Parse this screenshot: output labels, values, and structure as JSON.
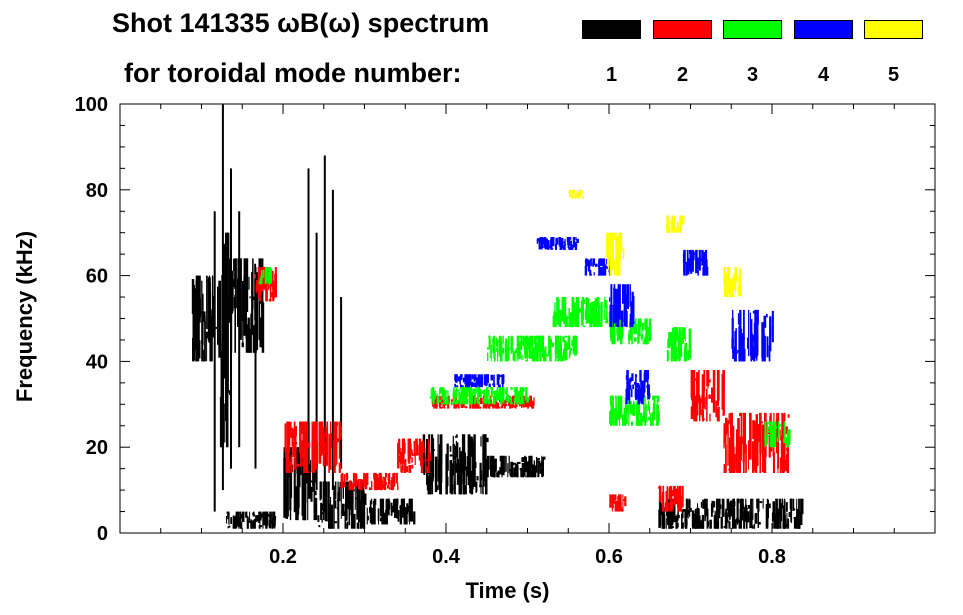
{
  "chart_data": {
    "type": "heatmap",
    "title_line1": "Shot 141335 ωB(ω) spectrum",
    "title_line2": "for toroidal mode number:",
    "legend": [
      {
        "label": "1",
        "color": "#000000"
      },
      {
        "label": "2",
        "color": "#ff0000"
      },
      {
        "label": "3",
        "color": "#00ff00"
      },
      {
        "label": "4",
        "color": "#0000ff"
      },
      {
        "label": "5",
        "color": "#ffff00"
      }
    ],
    "xlabel": "Time (s)",
    "ylabel": "Frequency (kHz)",
    "xlim": [
      0.0,
      1.0
    ],
    "ylim": [
      0,
      100
    ],
    "xticks": [
      0.2,
      0.4,
      0.6,
      0.8
    ],
    "xtick_labels": [
      "0.2",
      "0.4",
      "0.6",
      "0.8"
    ],
    "yticks": [
      0,
      20,
      40,
      60,
      80,
      100
    ],
    "ytick_labels": [
      "0",
      "20",
      "40",
      "60",
      "80",
      "100"
    ],
    "series": [
      {
        "name": "n=1",
        "color": "#000000",
        "regions": [
          {
            "t0": 0.085,
            "t1": 0.12,
            "f0": 40,
            "f1": 60
          },
          {
            "t0": 0.12,
            "t1": 0.135,
            "f0": 20,
            "f1": 70
          },
          {
            "t0": 0.125,
            "t1": 0.175,
            "f0": 42,
            "f1": 64
          },
          {
            "t0": 0.13,
            "t1": 0.19,
            "f0": 1,
            "f1": 5
          },
          {
            "t0": 0.2,
            "t1": 0.24,
            "f0": 3,
            "f1": 20
          },
          {
            "t0": 0.24,
            "t1": 0.3,
            "f0": 1,
            "f1": 12
          },
          {
            "t0": 0.3,
            "t1": 0.36,
            "f0": 2,
            "f1": 8
          },
          {
            "t0": 0.37,
            "t1": 0.45,
            "f0": 9,
            "f1": 23
          },
          {
            "t0": 0.45,
            "t1": 0.52,
            "f0": 13,
            "f1": 18
          },
          {
            "t0": 0.66,
            "t1": 0.84,
            "f0": 1,
            "f1": 8
          }
        ],
        "spikes": [
          {
            "t": 0.115,
            "f0": 5,
            "f1": 75
          },
          {
            "t": 0.125,
            "f0": 10,
            "f1": 100
          },
          {
            "t": 0.135,
            "f0": 15,
            "f1": 85
          },
          {
            "t": 0.145,
            "f0": 20,
            "f1": 75
          },
          {
            "t": 0.165,
            "f0": 15,
            "f1": 62
          },
          {
            "t": 0.23,
            "f0": 8,
            "f1": 85
          },
          {
            "t": 0.24,
            "f0": 10,
            "f1": 70
          },
          {
            "t": 0.25,
            "f0": 8,
            "f1": 88
          },
          {
            "t": 0.26,
            "f0": 10,
            "f1": 80
          },
          {
            "t": 0.27,
            "f0": 15,
            "f1": 55
          }
        ]
      },
      {
        "name": "n=2",
        "color": "#ff0000",
        "regions": [
          {
            "t0": 0.165,
            "t1": 0.19,
            "f0": 54,
            "f1": 62
          },
          {
            "t0": 0.2,
            "t1": 0.27,
            "f0": 14,
            "f1": 26
          },
          {
            "t0": 0.27,
            "t1": 0.34,
            "f0": 10,
            "f1": 14
          },
          {
            "t0": 0.34,
            "t1": 0.38,
            "f0": 14,
            "f1": 22
          },
          {
            "t0": 0.38,
            "t1": 0.51,
            "f0": 29,
            "f1": 32
          },
          {
            "t0": 0.6,
            "t1": 0.62,
            "f0": 5,
            "f1": 9
          },
          {
            "t0": 0.66,
            "t1": 0.69,
            "f0": 5,
            "f1": 11
          },
          {
            "t0": 0.7,
            "t1": 0.74,
            "f0": 26,
            "f1": 38
          },
          {
            "t0": 0.74,
            "t1": 0.82,
            "f0": 14,
            "f1": 28
          }
        ],
        "spikes": []
      },
      {
        "name": "n=3",
        "color": "#00ff00",
        "regions": [
          {
            "t0": 0.17,
            "t1": 0.185,
            "f0": 58,
            "f1": 62
          },
          {
            "t0": 0.38,
            "t1": 0.5,
            "f0": 30,
            "f1": 34
          },
          {
            "t0": 0.45,
            "t1": 0.56,
            "f0": 40,
            "f1": 46
          },
          {
            "t0": 0.53,
            "t1": 0.6,
            "f0": 48,
            "f1": 55
          },
          {
            "t0": 0.6,
            "t1": 0.65,
            "f0": 44,
            "f1": 50
          },
          {
            "t0": 0.67,
            "t1": 0.7,
            "f0": 40,
            "f1": 48
          },
          {
            "t0": 0.6,
            "t1": 0.66,
            "f0": 25,
            "f1": 32
          },
          {
            "t0": 0.79,
            "t1": 0.82,
            "f0": 20,
            "f1": 26
          }
        ],
        "spikes": []
      },
      {
        "name": "n=4",
        "color": "#0000ff",
        "regions": [
          {
            "t0": 0.41,
            "t1": 0.47,
            "f0": 34,
            "f1": 37
          },
          {
            "t0": 0.51,
            "t1": 0.56,
            "f0": 66,
            "f1": 69
          },
          {
            "t0": 0.57,
            "t1": 0.6,
            "f0": 60,
            "f1": 64
          },
          {
            "t0": 0.6,
            "t1": 0.63,
            "f0": 48,
            "f1": 58
          },
          {
            "t0": 0.69,
            "t1": 0.72,
            "f0": 60,
            "f1": 66
          },
          {
            "t0": 0.75,
            "t1": 0.8,
            "f0": 40,
            "f1": 52
          },
          {
            "t0": 0.62,
            "t1": 0.65,
            "f0": 30,
            "f1": 38
          }
        ],
        "spikes": []
      },
      {
        "name": "n=5",
        "color": "#ffff00",
        "regions": [
          {
            "t0": 0.595,
            "t1": 0.62,
            "f0": 60,
            "f1": 70
          },
          {
            "t0": 0.55,
            "t1": 0.57,
            "f0": 78,
            "f1": 80
          },
          {
            "t0": 0.67,
            "t1": 0.69,
            "f0": 70,
            "f1": 74
          },
          {
            "t0": 0.74,
            "t1": 0.76,
            "f0": 55,
            "f1": 62
          }
        ],
        "spikes": []
      }
    ]
  }
}
